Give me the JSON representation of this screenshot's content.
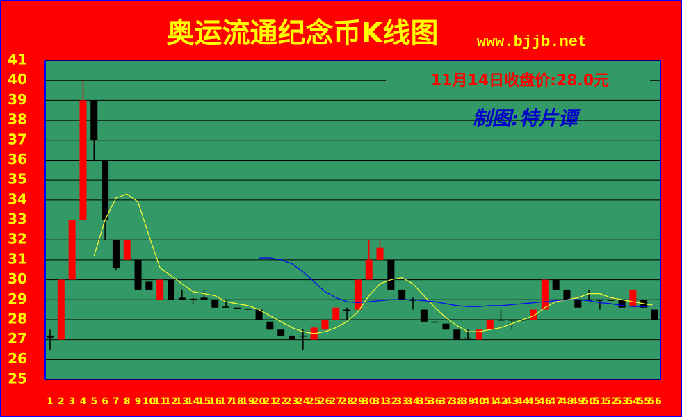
{
  "chart_data": {
    "type": "candlestick",
    "title": "奥运流通纪念币K线图",
    "subtitle": "www.bjjb.net",
    "annotations": [
      "11月14日收盘价:28.0元",
      "制图:特片谭"
    ],
    "categories": [
      "1",
      "2",
      "3",
      "4",
      "5",
      "6",
      "7",
      "8",
      "9",
      "10",
      "11",
      "12",
      "13",
      "14",
      "15",
      "16",
      "17",
      "18",
      "19",
      "20",
      "21",
      "22",
      "23",
      "24",
      "25",
      "26",
      "27",
      "28",
      "29",
      "30",
      "31",
      "32",
      "33",
      "34",
      "35",
      "36",
      "37",
      "38",
      "39",
      "40",
      "41",
      "42",
      "43",
      "44",
      "45",
      "46",
      "47",
      "48",
      "49",
      "50",
      "51",
      "52",
      "53",
      "54",
      "55",
      "56"
    ],
    "open": [
      27.2,
      27,
      30,
      33,
      39,
      36,
      32,
      31,
      31,
      29.9,
      29,
      30,
      29.1,
      29.05,
      29.1,
      29,
      28.65,
      28.6,
      28.55,
      28.5,
      27.9,
      27.5,
      27.2,
      27.2,
      27,
      27.5,
      28,
      28.5,
      28.5,
      30,
      31,
      31,
      29.5,
      29,
      28.5,
      27.9,
      27.8,
      27.5,
      27.1,
      27,
      27.5,
      28,
      28,
      28,
      28,
      28.5,
      30,
      29.5,
      29,
      29,
      29,
      29,
      29,
      28.7,
      29,
      28.5
    ],
    "high": [
      27.5,
      30,
      33,
      40,
      39,
      36,
      32,
      32,
      31,
      29.9,
      30,
      30,
      29.5,
      29.1,
      29.5,
      29,
      29,
      28.6,
      28.55,
      28.5,
      27.9,
      27.5,
      27.2,
      27.5,
      27.6,
      28,
      28.6,
      28.6,
      30,
      32,
      32,
      31,
      29.5,
      29.1,
      28.5,
      27.9,
      27.8,
      27.5,
      27.5,
      27.5,
      28,
      28.5,
      28,
      28,
      28.5,
      30,
      30,
      29.5,
      29,
      29.5,
      29,
      29,
      29,
      29.5,
      29,
      28.5
    ],
    "low": [
      26.5,
      27,
      30,
      33,
      36,
      32,
      30.5,
      31,
      29.5,
      29.5,
      29,
      29,
      29,
      28.8,
      29,
      28.6,
      28.6,
      28.55,
      28.5,
      28,
      27.5,
      27.2,
      27,
      26.5,
      27,
      27.5,
      28,
      28,
      28.5,
      30,
      31,
      29.5,
      29,
      28.5,
      27.9,
      27.85,
      27.5,
      27,
      27,
      27,
      27.5,
      28,
      27.5,
      28,
      28,
      28.5,
      29.5,
      29,
      28.6,
      29,
      28.5,
      28.95,
      28.6,
      28.7,
      28.6,
      28
    ],
    "close": [
      27.1,
      30,
      33,
      39,
      37,
      33,
      30.6,
      32,
      29.5,
      29.5,
      30,
      29,
      29,
      29,
      29,
      28.6,
      28.6,
      28.55,
      28.5,
      28,
      27.5,
      27.2,
      27,
      27.2,
      27.6,
      28,
      28.6,
      28.5,
      30,
      31,
      31.6,
      29.5,
      29,
      28.95,
      27.9,
      27.85,
      27.5,
      27,
      27.05,
      27.5,
      28,
      28,
      27.95,
      28,
      28.5,
      30,
      29.5,
      29,
      28.6,
      29,
      28.95,
      28.95,
      28.6,
      29.5,
      28.6,
      28
    ],
    "up_color": "#ff0000",
    "down_color": "#000000",
    "series": [
      {
        "color": "#ffff33",
        "values": [
          null,
          null,
          null,
          null,
          31.2,
          33,
          34.1,
          34.3,
          33.9,
          32.2,
          30.6,
          30.2,
          29.8,
          29.4,
          29.3,
          29.2,
          28.9,
          28.8,
          28.7,
          28.5,
          28.2,
          27.9,
          27.6,
          27.4,
          27.3,
          27.4,
          27.6,
          27.9,
          28.4,
          29.2,
          29.8,
          30.0,
          30.1,
          29.8,
          29.2,
          28.6,
          28.1,
          27.7,
          27.4,
          27.4,
          27.5,
          27.6,
          27.8,
          28.0,
          28.2,
          28.6,
          28.9,
          29.0,
          29.1,
          29.3,
          29.3,
          29.1,
          29.0,
          28.9,
          28.8,
          28.7
        ]
      },
      {
        "color": "#0000ff",
        "values": [
          null,
          null,
          null,
          null,
          null,
          null,
          null,
          null,
          null,
          null,
          null,
          null,
          null,
          null,
          null,
          null,
          null,
          null,
          null,
          31.1,
          31.1,
          31.0,
          30.8,
          30.4,
          29.9,
          29.4,
          29.1,
          28.9,
          28.85,
          28.9,
          28.95,
          29.0,
          29.0,
          29.0,
          28.95,
          28.9,
          28.8,
          28.7,
          28.65,
          28.65,
          28.7,
          28.7,
          28.75,
          28.8,
          28.85,
          28.9,
          28.95,
          29.0,
          29.0,
          28.95,
          28.85,
          28.8,
          28.7,
          28.65,
          28.65,
          28.7
        ]
      }
    ],
    "ylim": [
      25,
      41
    ],
    "yticks": [
      25,
      26,
      27,
      28,
      29,
      30,
      31,
      32,
      33,
      34,
      35,
      36,
      37,
      38,
      39,
      40,
      41
    ],
    "grid": true
  }
}
